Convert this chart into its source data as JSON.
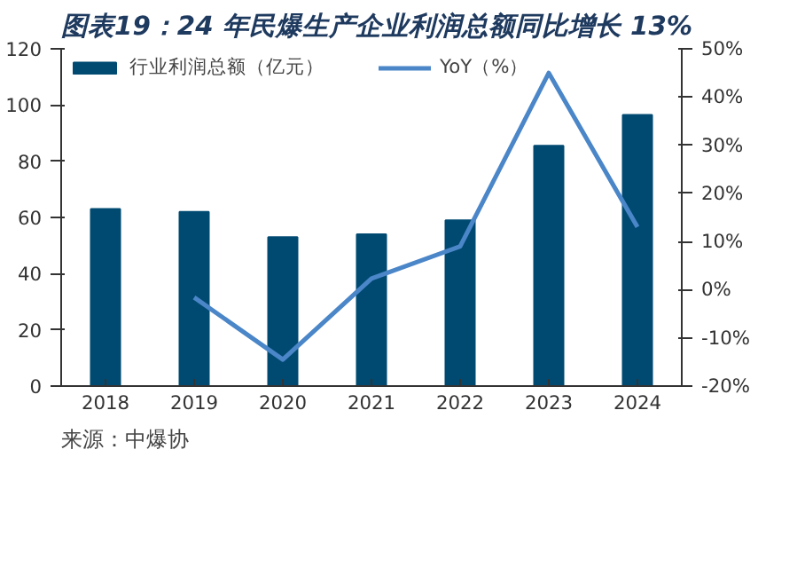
{
  "chart_data": {
    "type": "bar",
    "title": "图表19：24 年民爆生产企业利润总额同比增长 13%",
    "categories": [
      "2018",
      "2019",
      "2020",
      "2021",
      "2022",
      "2023",
      "2024"
    ],
    "series": [
      {
        "name": "行业利润总额（亿元）",
        "color": "#004a72",
        "values": [
          63,
          62,
          53,
          54,
          59,
          85.5,
          96.5
        ]
      },
      {
        "name": "YoY（%）",
        "type": "line",
        "axis": "y2",
        "color": "#4a86c8",
        "values": [
          null,
          -1.6,
          -14.5,
          2.3,
          9,
          45,
          13
        ]
      }
    ],
    "ylim": [
      0,
      120
    ],
    "yticks": [
      0,
      20,
      40,
      60,
      80,
      100,
      120
    ],
    "y2lim": [
      -20,
      50
    ],
    "y2ticks": [
      {
        "value": -20,
        "label": "-20%"
      },
      {
        "value": -10,
        "label": "-10%"
      },
      {
        "value": 0,
        "label": "0%"
      },
      {
        "value": 10,
        "label": "10%"
      },
      {
        "value": 20,
        "label": "20%"
      },
      {
        "value": 30,
        "label": "30%"
      },
      {
        "value": 40,
        "label": "40%"
      },
      {
        "value": 50,
        "label": "50%"
      }
    ],
    "grid": false,
    "legend": "top left",
    "annotations": [
      "来源：中爆协"
    ]
  }
}
